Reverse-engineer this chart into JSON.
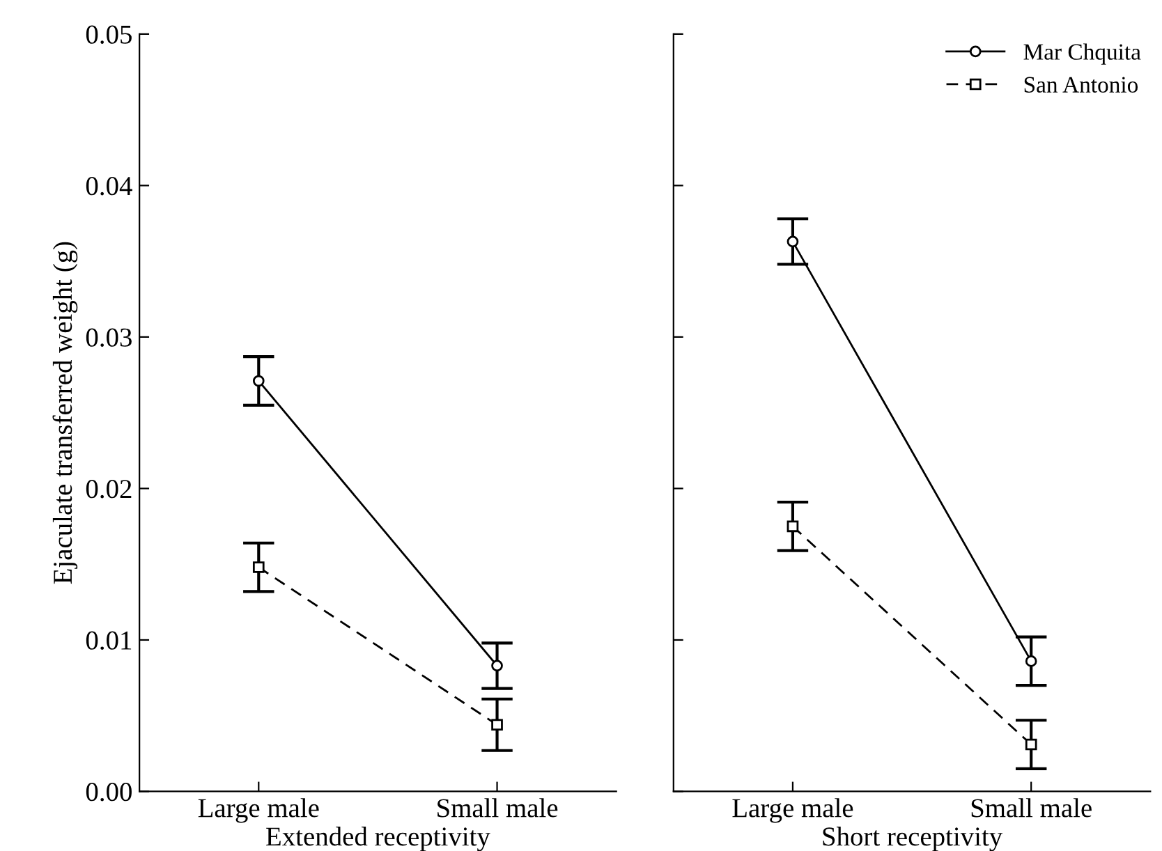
{
  "chart_data": [
    {
      "type": "line",
      "xlabel": "Extended receptivity",
      "ylabel": "Ejaculate transferred weight (g)",
      "categories": [
        "Large male",
        "Small male"
      ],
      "ylim": [
        0,
        0.05
      ],
      "yticks": [
        {
          "value": 0,
          "label": "0.00"
        },
        {
          "value": 0.01,
          "label": "0.01"
        },
        {
          "value": 0.02,
          "label": "0.02"
        },
        {
          "value": 0.03,
          "label": "0.03"
        },
        {
          "value": 0.04,
          "label": "0.04"
        },
        {
          "value": 0.05,
          "label": "0.05"
        }
      ],
      "grid": false,
      "legend": false,
      "series": [
        {
          "color": "#000000",
          "marker": "circle",
          "line_style": "solid",
          "values": [
            0.0271,
            0.0083
          ],
          "errors": [
            0.0016,
            0.0015
          ]
        },
        {
          "color": "#000000",
          "marker": "square",
          "line_style": "dashed",
          "values": [
            0.0148,
            0.0044
          ],
          "errors": [
            0.0016,
            0.0017
          ]
        }
      ]
    },
    {
      "type": "line",
      "xlabel": "Short receptivity",
      "categories": [
        "Large male",
        "Small male"
      ],
      "ylim": [
        0,
        0.05
      ],
      "yticks": [
        {
          "value": 0,
          "label": null
        },
        {
          "value": 0.01,
          "label": null
        },
        {
          "value": 0.02,
          "label": null
        },
        {
          "value": 0.03,
          "label": null
        },
        {
          "value": 0.04,
          "label": null
        },
        {
          "value": 0.05,
          "label": null
        }
      ],
      "tick_labels": "x",
      "grid": false,
      "legend": "top right",
      "series": [
        {
          "name": "Mar Chquita",
          "color": "#000000",
          "marker": "circle",
          "line_style": "solid",
          "values": [
            0.0363,
            0.0086
          ],
          "errors": [
            0.0015,
            0.0016
          ]
        },
        {
          "name": "San Antonio",
          "color": "#000000",
          "marker": "square",
          "line_style": "dashed",
          "values": [
            0.0175,
            0.0031
          ],
          "errors": [
            0.0016,
            0.0016
          ]
        }
      ]
    }
  ]
}
